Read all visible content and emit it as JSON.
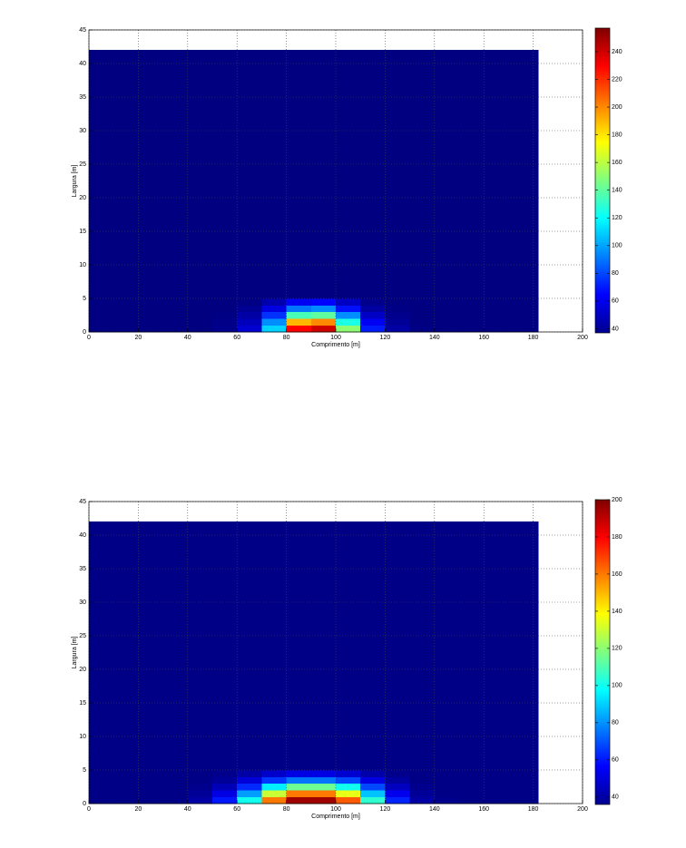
{
  "chart_data": [
    {
      "type": "heatmap",
      "xlabel": "Comprimento [m]",
      "ylabel": "Largura [m]",
      "colormap": "jet",
      "grid": true,
      "xlim": [
        0,
        200
      ],
      "xticks": [
        0,
        20,
        40,
        60,
        80,
        100,
        120,
        140,
        160,
        180,
        200
      ],
      "ylim": [
        0,
        45
      ],
      "yticks": [
        0,
        5,
        10,
        15,
        20,
        25,
        30,
        35,
        40,
        45
      ],
      "clim": [
        37,
        257
      ],
      "cticks": [
        40,
        60,
        80,
        100,
        120,
        140,
        160,
        180,
        200,
        220,
        240
      ],
      "xbins": [
        0,
        10,
        20,
        30,
        40,
        50,
        60,
        70,
        80,
        90,
        100,
        110,
        120,
        130,
        140,
        150,
        160,
        170,
        180,
        182
      ],
      "ybins": [
        0,
        1,
        2,
        3,
        4,
        5,
        42
      ],
      "values": [
        [
          37,
          37,
          37,
          37,
          37,
          40,
          55,
          110,
          230,
          240,
          150,
          70,
          45,
          38,
          37,
          37,
          37,
          37,
          37
        ],
        [
          37,
          37,
          37,
          37,
          37,
          39,
          50,
          95,
          190,
          200,
          125,
          62,
          42,
          37,
          37,
          37,
          37,
          37,
          37
        ],
        [
          37,
          37,
          37,
          37,
          37,
          38,
          45,
          75,
          135,
          140,
          95,
          52,
          40,
          37,
          37,
          37,
          37,
          37,
          37
        ],
        [
          37,
          37,
          37,
          37,
          37,
          37,
          41,
          58,
          90,
          95,
          68,
          44,
          38,
          37,
          37,
          37,
          37,
          37,
          37
        ],
        [
          37,
          37,
          37,
          37,
          37,
          37,
          38,
          47,
          62,
          65,
          52,
          40,
          37,
          37,
          37,
          37,
          37,
          37,
          37
        ],
        [
          37,
          37,
          37,
          37,
          37,
          37,
          37,
          37,
          37,
          37,
          37,
          37,
          37,
          37,
          37,
          37,
          37,
          37,
          37
        ]
      ]
    },
    {
      "type": "heatmap",
      "xlabel": "Comprimento [m]",
      "ylabel": "Largura [m]",
      "colormap": "jet",
      "grid": true,
      "xlim": [
        0,
        200
      ],
      "xticks": [
        0,
        20,
        40,
        60,
        80,
        100,
        120,
        140,
        160,
        180,
        200
      ],
      "ylim": [
        0,
        45
      ],
      "yticks": [
        0,
        5,
        10,
        15,
        20,
        25,
        30,
        35,
        40,
        45
      ],
      "clim": [
        36,
        200
      ],
      "cticks": [
        40,
        60,
        80,
        100,
        120,
        140,
        160,
        180,
        200
      ],
      "xbins": [
        0,
        10,
        20,
        30,
        40,
        50,
        60,
        70,
        80,
        90,
        100,
        110,
        120,
        130,
        140,
        150,
        160,
        170,
        180,
        182
      ],
      "ybins": [
        0,
        1,
        2,
        3,
        4,
        5,
        42
      ],
      "values": [
        [
          37,
          37,
          37,
          37,
          42,
          60,
          100,
          160,
          195,
          195,
          165,
          105,
          62,
          42,
          38,
          37,
          37,
          37,
          37
        ],
        [
          37,
          37,
          37,
          37,
          40,
          52,
          82,
          130,
          160,
          160,
          135,
          88,
          54,
          40,
          37,
          37,
          37,
          37,
          37
        ],
        [
          37,
          37,
          37,
          37,
          38,
          45,
          63,
          95,
          115,
          115,
          100,
          68,
          46,
          38,
          37,
          37,
          37,
          37,
          37
        ],
        [
          37,
          37,
          37,
          37,
          37,
          40,
          50,
          65,
          75,
          75,
          68,
          52,
          41,
          37,
          37,
          37,
          37,
          37,
          37
        ],
        [
          37,
          37,
          37,
          37,
          37,
          38,
          42,
          48,
          52,
          52,
          49,
          43,
          38,
          37,
          37,
          37,
          37,
          37,
          37
        ],
        [
          37,
          37,
          37,
          37,
          37,
          37,
          37,
          37,
          37,
          37,
          37,
          37,
          37,
          37,
          37,
          37,
          37,
          37,
          37
        ]
      ]
    }
  ]
}
